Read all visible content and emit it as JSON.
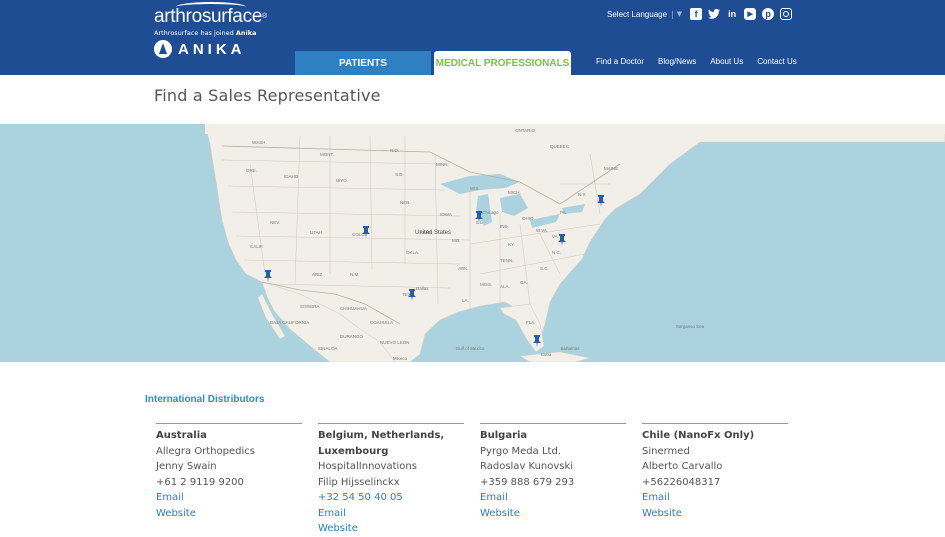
{
  "header": {
    "logo_word": "arthrosurface",
    "logo_reg": "®",
    "logo_sub_prefix": "Arthrosurface has joined ",
    "logo_sub_brand": "Anika",
    "anika_word": "ANIKA",
    "select_language": "Select Language",
    "lang_sep": "|",
    "social": [
      {
        "name": "facebook-icon",
        "glyph": "f"
      },
      {
        "name": "twitter-icon",
        "glyph": "t"
      },
      {
        "name": "linkedin-icon",
        "glyph": "in"
      },
      {
        "name": "youtube-icon",
        "glyph": "▶"
      },
      {
        "name": "pinterest-icon",
        "glyph": "p"
      },
      {
        "name": "instagram-icon",
        "glyph": ""
      }
    ],
    "tabs": {
      "patients": "PATIENTS",
      "medical_professionals": "MEDICAL PROFESSIONALS"
    },
    "nav": {
      "find_doctor": "Find a Doctor",
      "blog_news": "Blog/News",
      "about_us": "About Us",
      "contact_us": "Contact Us"
    },
    "colors": {
      "header_bg": "#1e4d94",
      "patients_tab": "#2f80c2",
      "active_tab_text": "#7bc144"
    }
  },
  "page": {
    "title": "Find a Sales Representative"
  },
  "map": {
    "country_label": "United States",
    "labels": {
      "ont": "ONTARIO",
      "dakota": "DAKOTA",
      "nd": "N.D.",
      "sd": "S.D.",
      "mont": "MONT.",
      "wyo": "WYO.",
      "neb": "NEB.",
      "kans": "KANS.",
      "okla": "OKLA.",
      "tex": "TEX.",
      "colo": "COLO.",
      "utah": "UTAH",
      "nev": "NEV.",
      "calif": "CALIF.",
      "ariz": "ARIZ.",
      "nm": "N.M.",
      "ore": "ORE.",
      "wash": "WASH.",
      "idaho": "IDAHO",
      "minn": "MINN.",
      "iowa": "IOWA",
      "mo": "MO.",
      "ark": "ARK.",
      "la": "LA.",
      "wis": "WIS.",
      "ill": "ILL.",
      "ind": "IND.",
      "ohio": "OHIO",
      "mich": "MICH.",
      "ky": "KY.",
      "tenn": "TENN.",
      "miss": "MISS.",
      "ala": "ALA.",
      "ga": "GA.",
      "fla": "FLA.",
      "sc": "S.C.",
      "nc": "N.C.",
      "va": "VA.",
      "wva": "W.VA.",
      "pa": "PA.",
      "ny": "N.Y.",
      "maine": "MAINE",
      "quebec": "QUEBEC",
      "chicago": "Chicago",
      "dallas": "Dallas",
      "cuba": "Cuba",
      "bahamas": "Bahamas",
      "mexico": "Mexico",
      "gulf": "Gulf of Mexico",
      "sargasso": "Sargasso Sea",
      "chihuahua": "CHIHUAHUA",
      "sonora": "SONORA",
      "coahuila": "COAHUILA",
      "durango": "DURANGO",
      "sinaloa": "SINALOA",
      "nuevo_leon": "NUEVO LEON",
      "baja": "BAJA CALIFORNIA"
    },
    "pins": [
      {
        "name": "map-pin-california"
      },
      {
        "name": "map-pin-colorado"
      },
      {
        "name": "map-pin-texas"
      },
      {
        "name": "map-pin-illinois"
      },
      {
        "name": "map-pin-virginia"
      },
      {
        "name": "map-pin-new-york"
      },
      {
        "name": "map-pin-florida"
      }
    ],
    "colors": {
      "water": "#aad3df",
      "land": "#f2efe9",
      "border": "#c5bcae",
      "pin": "#2a5da8"
    }
  },
  "intl": {
    "title": "International Distributors",
    "distributors": [
      {
        "country": "Australia",
        "company": "Allegra Orthopedics",
        "contact": "Jenny Swain",
        "phone": "+61 2 9119 9200",
        "email_label": "Email",
        "website_label": "Website"
      },
      {
        "country": "Belgium, Netherlands, Luxembourg",
        "company": "HospitalInnovations",
        "contact": "Filip Hijsselinckx",
        "phone": "+32 54 50 40 05",
        "email_label": "Email",
        "website_label": "Website"
      },
      {
        "country": "Bulgaria",
        "company": "Pyrgo Meda Ltd.",
        "contact": "Radoslav Kunovski",
        "phone": "+359 888 679 293",
        "email_label": "Email",
        "website_label": "Website"
      },
      {
        "country": "Chile (NanoFx Only)",
        "company": "Sinermed",
        "contact": "Alberto Carvallo",
        "phone": "+56226048317",
        "email_label": "Email",
        "website_label": "Website"
      }
    ]
  }
}
